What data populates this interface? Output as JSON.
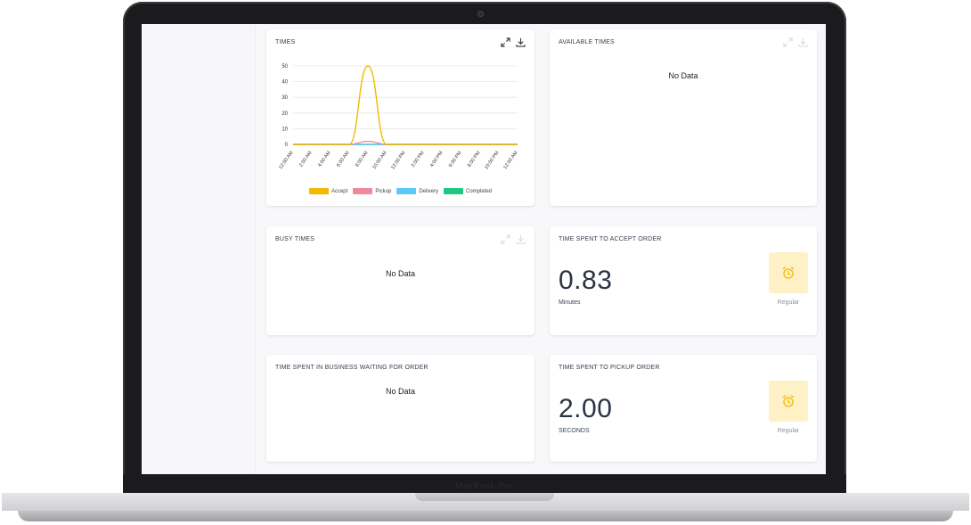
{
  "laptop": {
    "brand": "MacBook Pro"
  },
  "cards": {
    "times": {
      "title": "TIMES",
      "icons": [
        "expand-icon",
        "download-icon"
      ]
    },
    "available_times": {
      "title": "AVAILABLE TIMES",
      "empty": "No Data"
    },
    "busy_times": {
      "title": "BUSY TIMES",
      "empty": "No Data"
    },
    "accept_order": {
      "title": "TIME SPENT TO ACCEPT ORDER",
      "value": "0.83",
      "unit": "Minutes",
      "badge_label": "Regular",
      "badge_icon": "alarm-clock-icon"
    },
    "waiting_order": {
      "title": "TIME SPENT IN BUSINESS WAITING FOR ORDER",
      "empty": "No Data"
    },
    "pickup_order": {
      "title": "TIME SPENT TO PICKUP ORDER",
      "value": "2.00",
      "unit": "SECONDS",
      "badge_label": "Regular",
      "badge_icon": "alarm-clock-icon"
    }
  },
  "colors": {
    "accept": "#f5b800",
    "pickup": "#f08a9b",
    "delivery": "#5ac8fa",
    "completed": "#1dc981",
    "badge_bg": "#fdf1c5"
  },
  "chart_data": {
    "type": "line",
    "title": "TIMES",
    "x": [
      "12:00 AM",
      "2:00 AM",
      "4:00 AM",
      "6:00 AM",
      "8:00 AM",
      "10:00 AM",
      "12:00 PM",
      "2:00 PM",
      "4:00 PM",
      "6:00 PM",
      "8:00 PM",
      "10:00 PM",
      "12:00 AM"
    ],
    "ylim": [
      0,
      50
    ],
    "yticks": [
      0,
      10,
      20,
      30,
      40,
      50
    ],
    "grid": true,
    "legend": "bottom",
    "series": [
      {
        "name": "Accept",
        "color": "#f5b800",
        "values": [
          0,
          0,
          0,
          0,
          50,
          0,
          0,
          0,
          0,
          0,
          0,
          0,
          0
        ]
      },
      {
        "name": "Pickup",
        "color": "#f08a9b",
        "values": [
          0,
          0,
          0,
          0,
          2,
          0,
          0,
          0,
          0,
          0,
          0,
          0,
          0
        ]
      },
      {
        "name": "Delivery",
        "color": "#5ac8fa",
        "values": [
          0,
          0,
          0,
          0,
          0,
          0,
          0,
          0,
          0,
          0,
          0,
          0,
          0
        ]
      },
      {
        "name": "Completed",
        "color": "#1dc981",
        "values": [
          0,
          0,
          0,
          0,
          0,
          0,
          0,
          0,
          0,
          0,
          0,
          0,
          0
        ]
      }
    ]
  }
}
